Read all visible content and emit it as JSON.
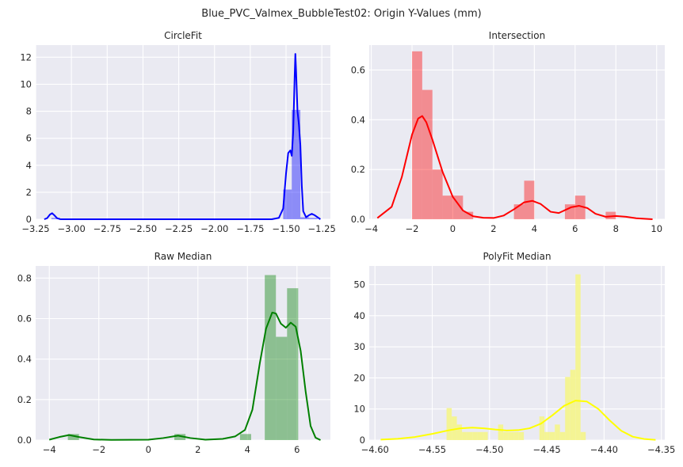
{
  "suptitle": "Blue_PVC_Valmex_BubbleTest02: Origin Y-Values (mm)",
  "chart_data": [
    {
      "type": "histogram+kde",
      "title": "CircleFit",
      "color": "#0000ff",
      "xlim": [
        -3.25,
        -1.19
      ],
      "ylim": [
        0,
        12.9
      ],
      "xticks": [
        -3.25,
        -3.0,
        -2.75,
        -2.5,
        -2.25,
        -2.0,
        -1.75,
        -1.5,
        -1.25
      ],
      "xtick_labels": [
        "−3.25",
        "−3.00",
        "−2.75",
        "−2.50",
        "−2.25",
        "−2.00",
        "−1.75",
        "−1.50",
        "−1.25"
      ],
      "yticks": [
        0,
        2,
        4,
        6,
        8,
        10,
        12
      ],
      "ytick_labels": [
        "0",
        "2",
        "4",
        "6",
        "8",
        "10",
        "12"
      ],
      "bins": [
        {
          "x0": -3.14,
          "x1": -3.08,
          "value": 0.1
        },
        {
          "x0": -1.52,
          "x1": -1.46,
          "value": 2.2
        },
        {
          "x0": -1.46,
          "x1": -1.4,
          "value": 8.1
        },
        {
          "x0": -1.4,
          "x1": -1.34,
          "value": 0.15
        },
        {
          "x0": -1.34,
          "x1": -1.28,
          "value": 0.1
        }
      ],
      "kde": [
        [
          -3.19,
          0
        ],
        [
          -3.17,
          0.08
        ],
        [
          -3.15,
          0.35
        ],
        [
          -3.135,
          0.45
        ],
        [
          -3.12,
          0.3
        ],
        [
          -3.1,
          0.08
        ],
        [
          -3.08,
          0.01
        ],
        [
          -3.06,
          0.0
        ],
        [
          -1.6,
          0.0
        ],
        [
          -1.55,
          0.1
        ],
        [
          -1.52,
          0.8
        ],
        [
          -1.5,
          3.4
        ],
        [
          -1.485,
          4.9
        ],
        [
          -1.47,
          5.1
        ],
        [
          -1.46,
          4.7
        ],
        [
          -1.45,
          6.5
        ],
        [
          -1.44,
          10.5
        ],
        [
          -1.435,
          12.25
        ],
        [
          -1.43,
          11.0
        ],
        [
          -1.42,
          8.0
        ],
        [
          -1.41,
          7.0
        ],
        [
          -1.4,
          5.5
        ],
        [
          -1.39,
          2.5
        ],
        [
          -1.38,
          0.6
        ],
        [
          -1.36,
          0.15
        ],
        [
          -1.34,
          0.3
        ],
        [
          -1.32,
          0.4
        ],
        [
          -1.3,
          0.3
        ],
        [
          -1.28,
          0.15
        ],
        [
          -1.26,
          0.0
        ]
      ]
    },
    {
      "type": "histogram+kde",
      "title": "Intersection",
      "color": "#ff0000",
      "xlim": [
        -4.1,
        10.4
      ],
      "ylim": [
        0,
        0.7
      ],
      "xticks": [
        -4,
        -2,
        0,
        2,
        4,
        6,
        8,
        10
      ],
      "xtick_labels": [
        "−4",
        "−2",
        "0",
        "2",
        "4",
        "6",
        "8",
        "10"
      ],
      "yticks": [
        0.0,
        0.2,
        0.4,
        0.6
      ],
      "ytick_labels": [
        "0.0",
        "0.2",
        "0.4",
        "0.6"
      ],
      "bins": [
        {
          "x0": -2.0,
          "x1": -1.5,
          "value": 0.675
        },
        {
          "x0": -1.5,
          "x1": -1.0,
          "value": 0.52
        },
        {
          "x0": -1.0,
          "x1": -0.5,
          "value": 0.2
        },
        {
          "x0": -0.5,
          "x1": 0.0,
          "value": 0.095
        },
        {
          "x0": 0.0,
          "x1": 0.5,
          "value": 0.095
        },
        {
          "x0": 0.5,
          "x1": 1.0,
          "value": 0.03
        },
        {
          "x0": 3.0,
          "x1": 3.5,
          "value": 0.06
        },
        {
          "x0": 3.5,
          "x1": 4.0,
          "value": 0.155
        },
        {
          "x0": 5.5,
          "x1": 6.0,
          "value": 0.06
        },
        {
          "x0": 6.0,
          "x1": 6.5,
          "value": 0.095
        },
        {
          "x0": 7.5,
          "x1": 8.0,
          "value": 0.03
        }
      ],
      "kde": [
        [
          -3.7,
          0.005
        ],
        [
          -3.0,
          0.05
        ],
        [
          -2.5,
          0.17
        ],
        [
          -2.0,
          0.34
        ],
        [
          -1.7,
          0.405
        ],
        [
          -1.5,
          0.415
        ],
        [
          -1.3,
          0.39
        ],
        [
          -1.0,
          0.32
        ],
        [
          -0.5,
          0.19
        ],
        [
          0.0,
          0.09
        ],
        [
          0.5,
          0.035
        ],
        [
          1.0,
          0.012
        ],
        [
          1.5,
          0.006
        ],
        [
          2.0,
          0.005
        ],
        [
          2.5,
          0.015
        ],
        [
          3.0,
          0.04
        ],
        [
          3.5,
          0.068
        ],
        [
          3.9,
          0.074
        ],
        [
          4.3,
          0.062
        ],
        [
          4.8,
          0.03
        ],
        [
          5.2,
          0.025
        ],
        [
          5.8,
          0.048
        ],
        [
          6.2,
          0.054
        ],
        [
          6.6,
          0.045
        ],
        [
          7.0,
          0.022
        ],
        [
          7.5,
          0.01
        ],
        [
          8.0,
          0.013
        ],
        [
          8.5,
          0.01
        ],
        [
          9.0,
          0.004
        ],
        [
          9.8,
          0.0
        ]
      ]
    },
    {
      "type": "histogram+kde",
      "title": "Raw Median",
      "color": "#008000",
      "xlim": [
        -4.55,
        7.35
      ],
      "ylim": [
        0,
        0.86
      ],
      "xticks": [
        -4,
        -2,
        0,
        2,
        4,
        6
      ],
      "xtick_labels": [
        "−4",
        "−2",
        "0",
        "2",
        "4",
        "6"
      ],
      "yticks": [
        0.0,
        0.2,
        0.4,
        0.6,
        0.8
      ],
      "ytick_labels": [
        "0.0",
        "0.2",
        "0.4",
        "0.6",
        "0.8"
      ],
      "bins": [
        {
          "x0": -3.25,
          "x1": -2.8,
          "value": 0.03
        },
        {
          "x0": 1.05,
          "x1": 1.5,
          "value": 0.03
        },
        {
          "x0": 3.7,
          "x1": 4.15,
          "value": 0.03
        },
        {
          "x0": 4.7,
          "x1": 5.15,
          "value": 0.815
        },
        {
          "x0": 5.15,
          "x1": 5.6,
          "value": 0.51
        },
        {
          "x0": 5.6,
          "x1": 6.05,
          "value": 0.75
        }
      ],
      "kde": [
        [
          -4.0,
          0.002
        ],
        [
          -3.6,
          0.015
        ],
        [
          -3.2,
          0.025
        ],
        [
          -2.8,
          0.015
        ],
        [
          -2.2,
          0.003
        ],
        [
          -1.5,
          0.001
        ],
        [
          0.0,
          0.002
        ],
        [
          0.6,
          0.01
        ],
        [
          1.2,
          0.022
        ],
        [
          1.7,
          0.01
        ],
        [
          2.3,
          0.002
        ],
        [
          3.0,
          0.006
        ],
        [
          3.5,
          0.018
        ],
        [
          3.9,
          0.05
        ],
        [
          4.2,
          0.15
        ],
        [
          4.5,
          0.38
        ],
        [
          4.75,
          0.55
        ],
        [
          5.0,
          0.63
        ],
        [
          5.15,
          0.625
        ],
        [
          5.35,
          0.575
        ],
        [
          5.55,
          0.555
        ],
        [
          5.75,
          0.58
        ],
        [
          5.95,
          0.56
        ],
        [
          6.15,
          0.44
        ],
        [
          6.35,
          0.24
        ],
        [
          6.55,
          0.07
        ],
        [
          6.75,
          0.012
        ],
        [
          6.95,
          0.0
        ]
      ]
    },
    {
      "type": "histogram+kde",
      "title": "PolyFit Median",
      "color": "#ffff00",
      "hist_color": "#f5f58a",
      "xlim": [
        -4.605,
        -4.347
      ],
      "ylim": [
        0,
        56
      ],
      "xticks": [
        -4.6,
        -4.55,
        -4.5,
        -4.45,
        -4.4,
        -4.35
      ],
      "xtick_labels": [
        "−4.60",
        "−4.55",
        "−4.50",
        "−4.45",
        "−4.40",
        "−4.35"
      ],
      "yticks": [
        0,
        10,
        20,
        30,
        40,
        50
      ],
      "ytick_labels": [
        "0",
        "10",
        "20",
        "30",
        "40",
        "50"
      ],
      "bins": [
        {
          "x0": -4.5375,
          "x1": -4.533,
          "value": 10.3
        },
        {
          "x0": -4.533,
          "x1": -4.5285,
          "value": 7.6
        },
        {
          "x0": -4.5285,
          "x1": -4.524,
          "value": 5.0
        },
        {
          "x0": -4.524,
          "x1": -4.5195,
          "value": 2.6
        },
        {
          "x0": -4.5195,
          "x1": -4.515,
          "value": 2.6
        },
        {
          "x0": -4.515,
          "x1": -4.5105,
          "value": 2.6
        },
        {
          "x0": -4.5105,
          "x1": -4.506,
          "value": 2.6
        },
        {
          "x0": -4.506,
          "x1": -4.5015,
          "value": 2.6
        },
        {
          "x0": -4.4925,
          "x1": -4.488,
          "value": 5.0
        },
        {
          "x0": -4.488,
          "x1": -4.4835,
          "value": 2.6
        },
        {
          "x0": -4.4835,
          "x1": -4.479,
          "value": 2.6
        },
        {
          "x0": -4.479,
          "x1": -4.4745,
          "value": 2.6
        },
        {
          "x0": -4.4745,
          "x1": -4.47,
          "value": 2.6
        },
        {
          "x0": -4.4565,
          "x1": -4.452,
          "value": 7.6
        },
        {
          "x0": -4.452,
          "x1": -4.4475,
          "value": 2.6
        },
        {
          "x0": -4.4475,
          "x1": -4.443,
          "value": 2.6
        },
        {
          "x0": -4.443,
          "x1": -4.4385,
          "value": 5.0
        },
        {
          "x0": -4.4385,
          "x1": -4.434,
          "value": 2.6
        },
        {
          "x0": -4.434,
          "x1": -4.4295,
          "value": 20.3
        },
        {
          "x0": -4.4295,
          "x1": -4.425,
          "value": 22.6
        },
        {
          "x0": -4.425,
          "x1": -4.4205,
          "value": 53.3
        },
        {
          "x0": -4.4205,
          "x1": -4.416,
          "value": 2.6
        }
      ],
      "kde": [
        [
          -4.595,
          0.15
        ],
        [
          -4.58,
          0.4
        ],
        [
          -4.565,
          1.0
        ],
        [
          -4.55,
          2.0
        ],
        [
          -4.535,
          3.2
        ],
        [
          -4.525,
          3.8
        ],
        [
          -4.515,
          4.0
        ],
        [
          -4.505,
          3.8
        ],
        [
          -4.495,
          3.4
        ],
        [
          -4.485,
          3.1
        ],
        [
          -4.475,
          3.2
        ],
        [
          -4.465,
          3.8
        ],
        [
          -4.455,
          5.3
        ],
        [
          -4.445,
          8.0
        ],
        [
          -4.435,
          11.0
        ],
        [
          -4.425,
          12.7
        ],
        [
          -4.415,
          12.4
        ],
        [
          -4.405,
          10.0
        ],
        [
          -4.395,
          6.3
        ],
        [
          -4.385,
          3.0
        ],
        [
          -4.375,
          1.1
        ],
        [
          -4.365,
          0.35
        ],
        [
          -4.355,
          0.08
        ]
      ]
    }
  ]
}
